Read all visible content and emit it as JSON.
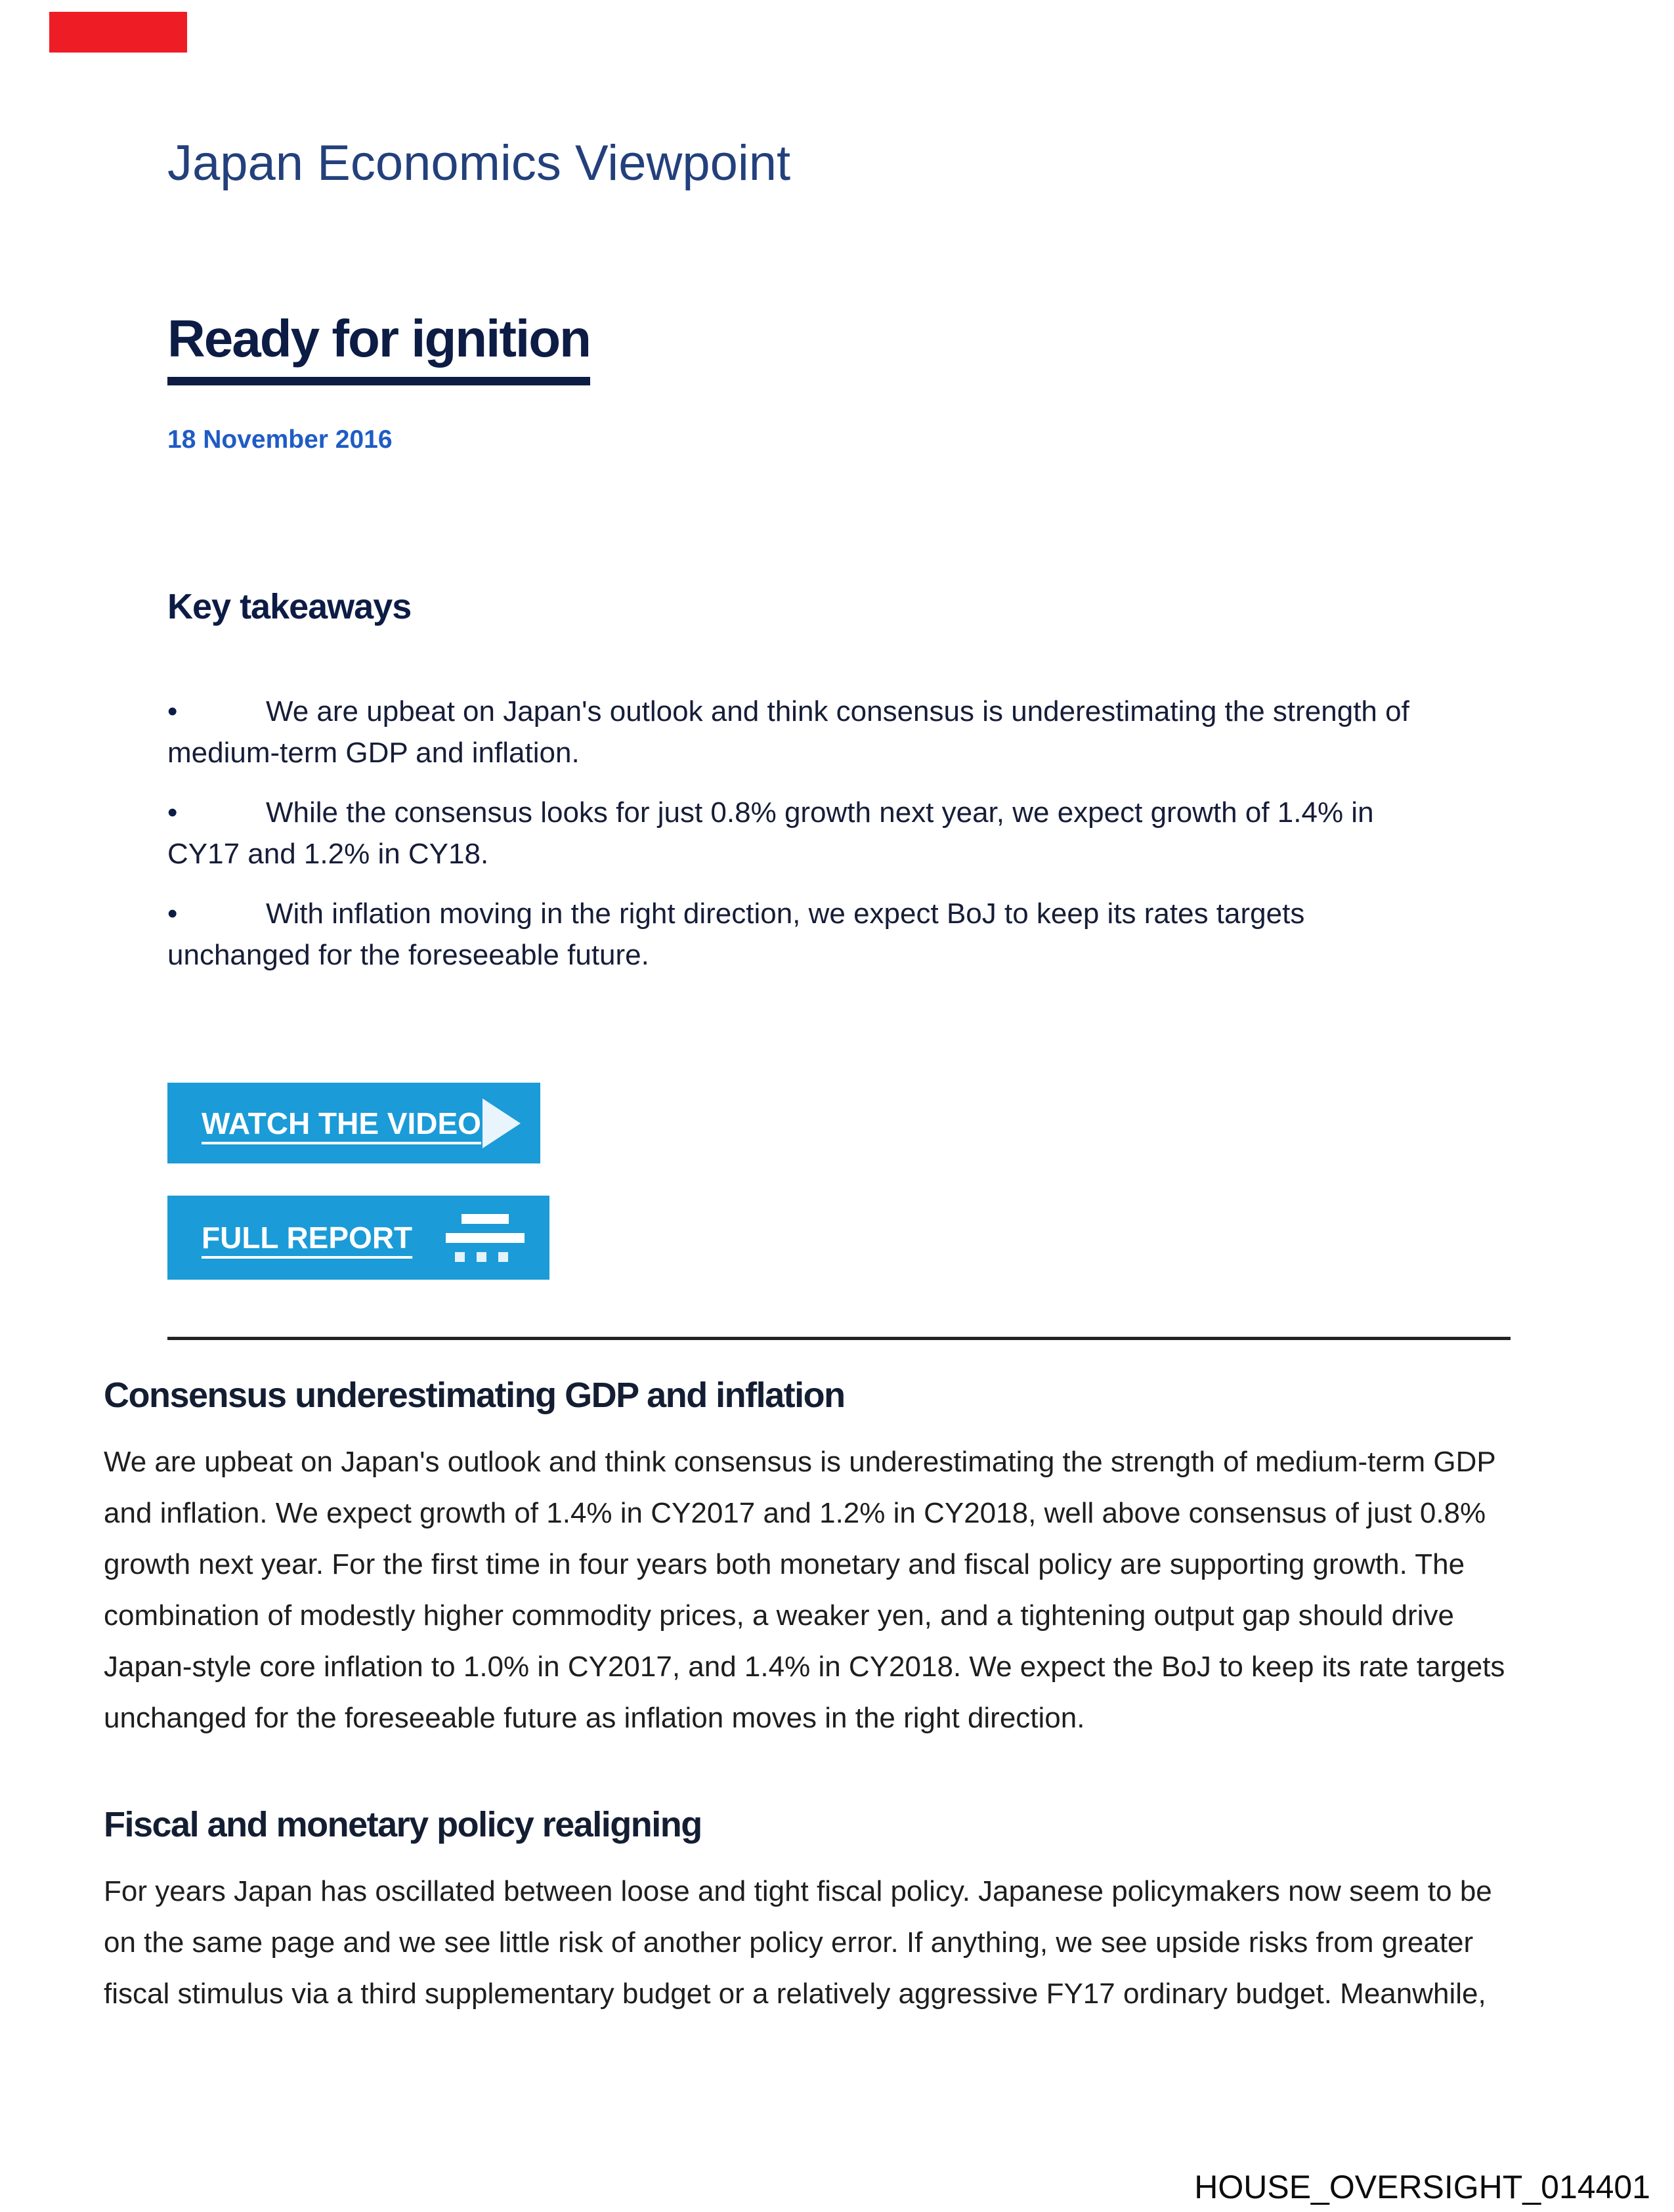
{
  "page": {
    "brand": {
      "logo_color": "#ee1c25"
    },
    "masthead": {
      "series_title": "Japan Economics Viewpoint",
      "report_title": "Ready for ignition",
      "date": "18 November 2016",
      "series_title_color": "#23407c",
      "report_title_color": "#0d1c45",
      "date_color": "#1f5cc5"
    },
    "key_takeaways": {
      "heading": "Key takeaways",
      "bullets": [
        {
          "lines": [
            "We are upbeat on Japan's outlook and think consensus is underestimating the strength of",
            "medium-term GDP and inflation."
          ]
        },
        {
          "lines": [
            "While the consensus looks for just 0.8% growth next year, we expect growth of 1.4% in",
            "CY17 and 1.2% in CY18."
          ]
        },
        {
          "lines": [
            "With inflation moving in the right direction, we expect BoJ to keep its rates targets",
            "unchanged for the foreseeable future."
          ]
        }
      ]
    },
    "actions": {
      "watch_video_label": "WATCH THE VIDEO",
      "full_report_label": "FULL REPORT",
      "button_color": "#1b9bd7",
      "play_icon": "play-triangle",
      "report_icon": "document-lines-ellipsis"
    },
    "sections": [
      {
        "heading": "Consensus underestimating GDP and inflation",
        "lines": [
          "We are upbeat on Japan's outlook and think consensus is underestimating the strength of medium-term GDP",
          "and inflation. We expect growth of 1.4% in CY2017 and 1.2% in CY2018, well above consensus of just 0.8%",
          "growth next year. For the first time in four years both monetary and fiscal policy are supporting growth. The",
          "combination of modestly higher commodity prices, a weaker yen, and a tightening output gap should drive",
          "Japan-style core inflation to 1.0% in CY2017, and 1.4% in CY2018. We expect the BoJ to keep its rate targets",
          "unchanged for the foreseeable future as inflation moves in the right direction."
        ]
      },
      {
        "heading": "Fiscal and monetary policy realigning",
        "lines": [
          "For years Japan has oscillated between loose and tight fiscal policy. Japanese policymakers now seem to be",
          "on the same page and we see little risk of another policy error. If anything, we see upside risks from greater",
          "fiscal stimulus via a third supplementary budget or a relatively aggressive FY17 ordinary budget. Meanwhile,"
        ]
      }
    ],
    "footer": {
      "bates_number": "HOUSE_OVERSIGHT_014401"
    },
    "bullet_glyph": "•"
  }
}
